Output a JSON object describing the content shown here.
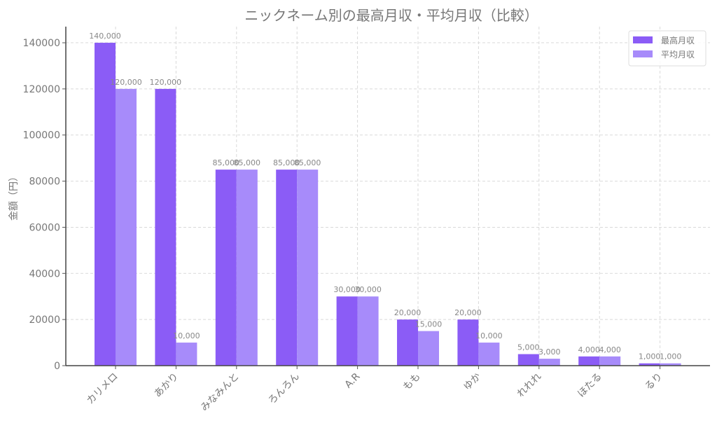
{
  "chart_data": {
    "type": "bar",
    "title": "ニックネーム別の最高月収・平均月収（比較）",
    "xlabel": "",
    "ylabel": "金額（円）",
    "ylim": [
      0,
      147000
    ],
    "yticks": [
      0,
      20000,
      40000,
      60000,
      80000,
      100000,
      120000,
      140000
    ],
    "grid": true,
    "legend_position": "upper right",
    "categories": [
      "カリメロ",
      "あかり",
      "みなみんと",
      "ろんろん",
      "A.R",
      "もも",
      "ゆか",
      "れれれ",
      "ほたる",
      "るり"
    ],
    "series": [
      {
        "name": "最高月収",
        "color": "#8b5cf6",
        "values": [
          140000,
          120000,
          85000,
          85000,
          30000,
          20000,
          20000,
          5000,
          4000,
          1000
        ],
        "labels": [
          "140,000",
          "120,000",
          "85,000",
          "85,000",
          "30,000",
          "20,000",
          "20,000",
          "5,000",
          "4,000",
          "1,000"
        ]
      },
      {
        "name": "平均月収",
        "color": "#a78bfa",
        "values": [
          120000,
          10000,
          85000,
          85000,
          30000,
          15000,
          10000,
          3000,
          4000,
          1000
        ],
        "labels": [
          "120,000",
          "10,000",
          "85,000",
          "85,000",
          "30,000",
          "15,000",
          "10,000",
          "3,000",
          "4,000",
          "1,000"
        ]
      }
    ]
  },
  "legend": {
    "items": [
      {
        "label": "最高月収",
        "color": "#8b5cf6"
      },
      {
        "label": "平均月収",
        "color": "#a78bfa"
      }
    ]
  }
}
